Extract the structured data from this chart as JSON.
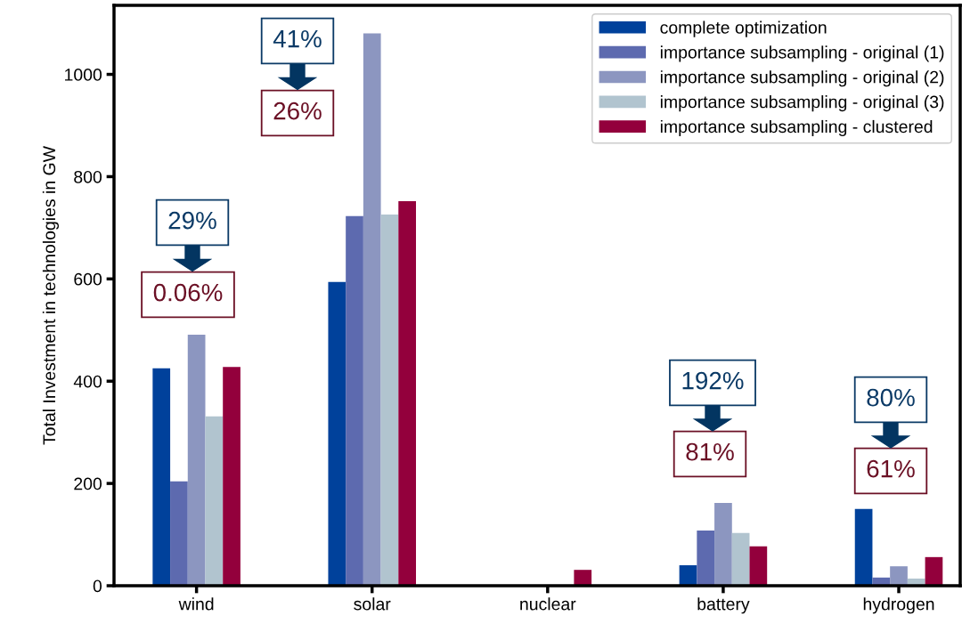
{
  "chart_data": {
    "type": "bar",
    "ylabel": "Total Investment in technologies in GW",
    "categories": [
      "wind",
      "solar",
      "nuclear",
      "battery",
      "hydrogen"
    ],
    "series": [
      {
        "name": "complete optimization",
        "color": "#00419b",
        "values": [
          425,
          594,
          0,
          40,
          150
        ]
      },
      {
        "name": "importance subsampling - original (1)",
        "color": "#5d6aaf",
        "values": [
          204,
          723,
          0,
          108,
          16
        ]
      },
      {
        "name": "importance subsampling - original (2)",
        "color": "#8c96c0",
        "values": [
          491,
          1080,
          0,
          162,
          38
        ]
      },
      {
        "name": "importance subsampling - original (3)",
        "color": "#b1c4cf",
        "values": [
          331,
          726,
          0,
          103,
          14
        ]
      },
      {
        "name": "importance subsampling - clustered",
        "color": "#93003c",
        "values": [
          428,
          752,
          31,
          77,
          56
        ]
      }
    ],
    "ylim": [
      0,
      1135
    ],
    "yticks": [
      0,
      200,
      400,
      600,
      800,
      1000
    ],
    "grid": false,
    "legend": "top right",
    "annotations": [
      "29%",
      "0.06%",
      "41%",
      "26%",
      "192%",
      "81%",
      "80%",
      "61%"
    ]
  }
}
